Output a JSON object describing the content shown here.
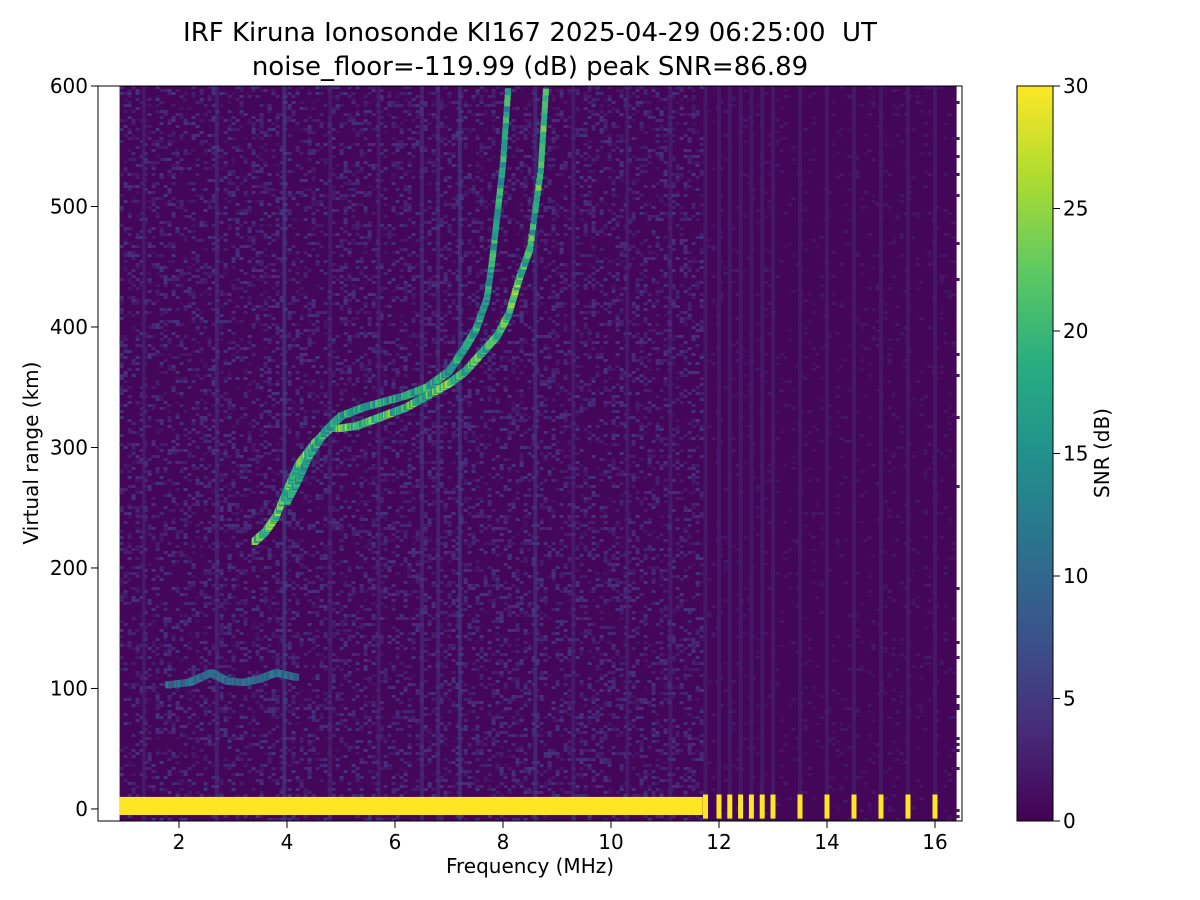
{
  "chart_data": {
    "type": "heatmap",
    "title": "IRF Kiruna Ionosonde KI167 2025-04-29 06:25:00  UT",
    "subtitle": "noise_floor=-119.99 (dB) peak SNR=86.89",
    "xlabel": "Frequency (MHz)",
    "ylabel": "Virtual range (km)",
    "xlim": [
      0.5,
      16.5
    ],
    "ylim": [
      -10,
      600
    ],
    "x_ticks": [
      2,
      4,
      6,
      8,
      10,
      12,
      14,
      16
    ],
    "y_ticks": [
      0,
      100,
      200,
      300,
      400,
      500,
      600
    ],
    "colorbar": {
      "label": "SNR (dB)",
      "range": [
        0,
        30
      ],
      "ticks": [
        0,
        5,
        10,
        15,
        20,
        25,
        30
      ],
      "colormap": "viridis"
    },
    "data_frequency_range_mhz": [
      0.9,
      16.4
    ],
    "traces": [
      {
        "points": [
          [
            1.8,
            103
          ],
          [
            2.2,
            105
          ],
          [
            2.6,
            113
          ],
          [
            2.9,
            106
          ],
          [
            3.2,
            105
          ],
          [
            3.5,
            108
          ],
          [
            3.8,
            113
          ],
          [
            4.2,
            109
          ]
        ],
        "snr": 12
      },
      {
        "points": [
          [
            3.4,
            222
          ],
          [
            3.6,
            230
          ],
          [
            3.8,
            243
          ],
          [
            4.0,
            265
          ],
          [
            4.2,
            285
          ],
          [
            4.5,
            303
          ],
          [
            4.8,
            316
          ],
          [
            5.0,
            316
          ],
          [
            5.3,
            318
          ],
          [
            5.6,
            323
          ],
          [
            5.9,
            328
          ],
          [
            6.2,
            333
          ],
          [
            6.6,
            343
          ],
          [
            7.0,
            353
          ],
          [
            7.3,
            363
          ],
          [
            7.6,
            378
          ],
          [
            7.9,
            393
          ],
          [
            8.1,
            410
          ],
          [
            8.3,
            440
          ]
        ],
        "snr": 24
      },
      {
        "points": [
          [
            4.0,
            255
          ],
          [
            4.2,
            272
          ],
          [
            4.4,
            292
          ],
          [
            4.7,
            313
          ],
          [
            5.0,
            326
          ],
          [
            5.4,
            333
          ],
          [
            5.8,
            338
          ],
          [
            6.2,
            343
          ],
          [
            6.6,
            350
          ],
          [
            7.0,
            363
          ],
          [
            7.3,
            383
          ],
          [
            7.5,
            398
          ],
          [
            7.7,
            423
          ],
          [
            7.8,
            455
          ],
          [
            7.9,
            495
          ],
          [
            8.0,
            535
          ],
          [
            8.1,
            600
          ]
        ],
        "snr": 20
      },
      {
        "points": [
          [
            8.3,
            440
          ],
          [
            8.5,
            465
          ],
          [
            8.7,
            530
          ],
          [
            8.8,
            600
          ]
        ],
        "snr": 22
      },
      {
        "points": [
          [
            0.9,
            0
          ],
          [
            2.0,
            0
          ],
          [
            4.0,
            0
          ],
          [
            6.0,
            0
          ],
          [
            8.0,
            0
          ],
          [
            10.0,
            0
          ],
          [
            11.7,
            0
          ]
        ],
        "snr": 30
      }
    ],
    "sampled_ground_pulses_mhz": [
      11.75,
      12.0,
      12.2,
      12.4,
      12.6,
      12.8,
      13.0,
      13.5,
      14.0,
      14.5,
      15.0,
      15.5,
      16.0
    ],
    "grid": false,
    "legend": "none"
  }
}
